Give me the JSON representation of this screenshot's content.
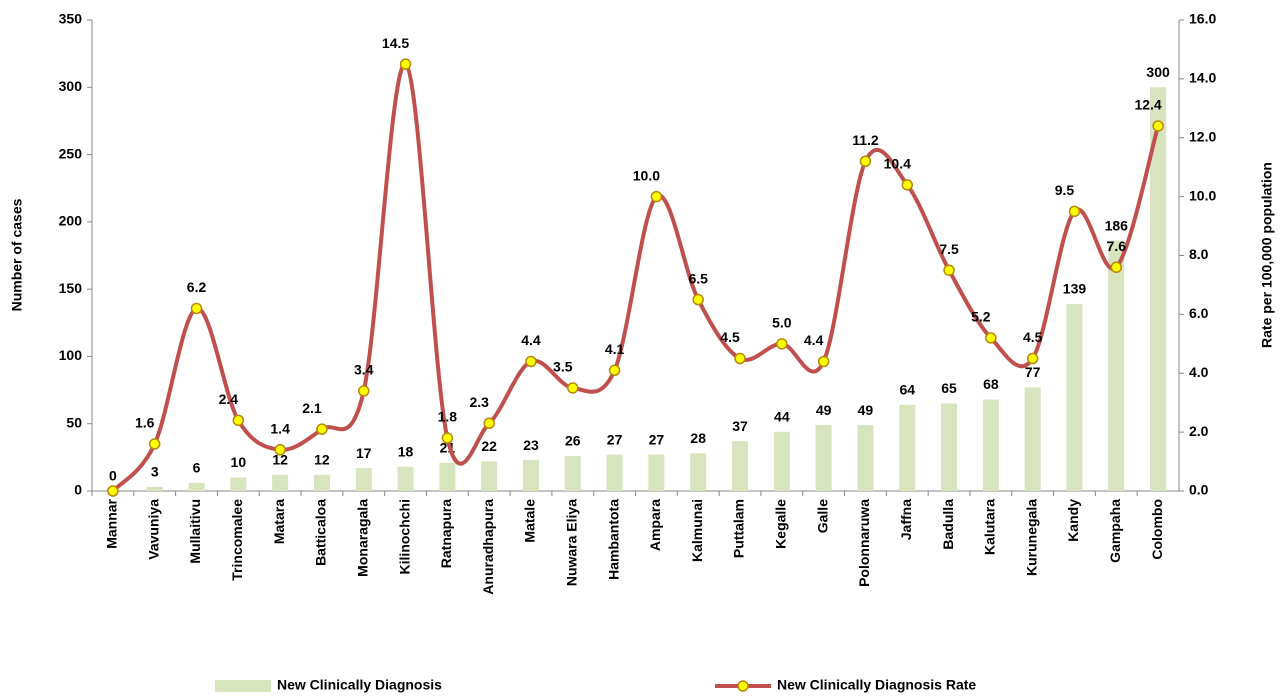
{
  "chart_data": {
    "type": "bar-line",
    "categories": [
      "Mannar",
      "Vavuniya",
      "Mullaitivu",
      "Trincomalee",
      "Matara",
      "Batticaloa",
      "Monaragala",
      "Kilinochchi",
      "Ratnapura",
      "Anuradhapura",
      "Matale",
      "Nuwara Eliya",
      "Hambantota",
      "Ampara",
      "Kalmunai",
      "Puttalam",
      "Kegalle",
      "Galle",
      "Polonnaruwa",
      "Jaffna",
      "Badulla",
      "Kalutara",
      "Kurunegala",
      "Kandy",
      "Gampaha",
      "Colombo"
    ],
    "series": [
      {
        "name": "New Clinically Diagnosis",
        "type": "bar",
        "color": "#d7e4bd",
        "values": [
          0,
          3,
          6,
          10,
          12,
          12,
          17,
          18,
          21,
          22,
          23,
          26,
          27,
          27,
          28,
          37,
          44,
          49,
          49,
          64,
          65,
          68,
          77,
          139,
          186,
          300
        ]
      },
      {
        "name": "New Clinically Diagnosis Rate",
        "type": "line",
        "axis": "y2",
        "color": "#c0504d",
        "marker_color": "#ffff00",
        "values": [
          0,
          1.6,
          6.2,
          2.4,
          1.4,
          2.1,
          3.4,
          14.5,
          1.8,
          2.3,
          4.4,
          3.5,
          4.1,
          10.0,
          6.5,
          4.5,
          5.0,
          4.4,
          11.2,
          10.4,
          7.5,
          5.2,
          4.5,
          9.5,
          7.6,
          12.4
        ],
        "value_labels": [
          null,
          "1.6",
          "6.2",
          "2.4",
          "1.4",
          "2.1",
          "3.4",
          "14.5",
          "1.8",
          "2.3",
          "4.4",
          "3.5",
          "4.1",
          "10.0",
          "6.5",
          "4.5",
          "5.0",
          "4.4",
          "11.2",
          "10.4",
          "7.5",
          "5.2",
          "4.5",
          "9.5",
          "7.6",
          "12.4"
        ]
      }
    ],
    "ylabel": "Number of cases",
    "y2label": "Rate per 100,000 population",
    "ylim": [
      0,
      350
    ],
    "yticks": [
      0,
      50,
      100,
      150,
      200,
      250,
      300,
      350
    ],
    "y2lim": [
      0,
      16
    ],
    "y2ticks": [
      {
        "value": 0,
        "label": "0.0"
      },
      {
        "value": 2,
        "label": "2.0"
      },
      {
        "value": 4,
        "label": "4.0"
      },
      {
        "value": 6,
        "label": "6.0"
      },
      {
        "value": 8,
        "label": "8.0"
      },
      {
        "value": 10,
        "label": "10.0"
      },
      {
        "value": 12,
        "label": "12.0"
      },
      {
        "value": 14,
        "label": "14.0"
      },
      {
        "value": 16,
        "label": "16.0"
      }
    ],
    "legend": "bottom"
  }
}
